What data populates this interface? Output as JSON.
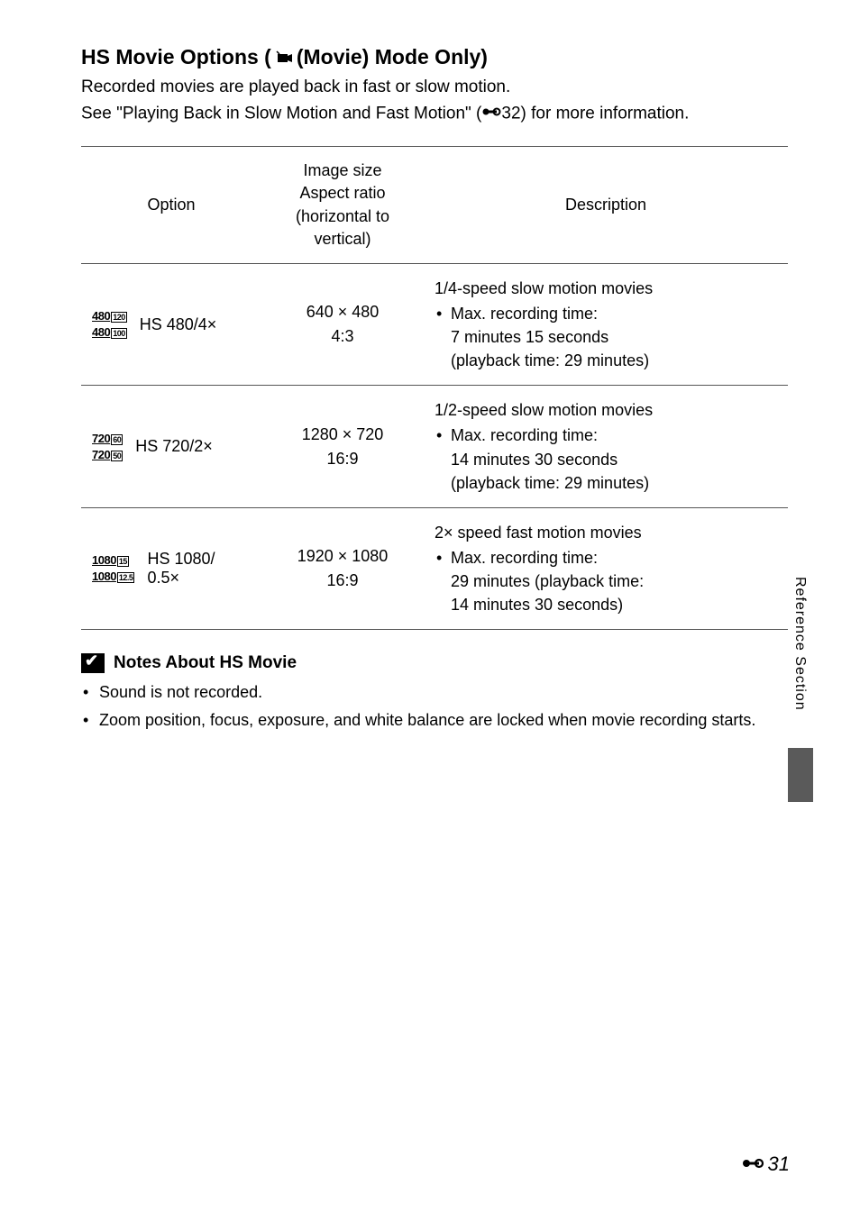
{
  "title": {
    "part1": "HS Movie Options (",
    "part2": " (Movie) Mode Only)"
  },
  "intro": {
    "line1": "Recorded movies are played back in fast or slow motion.",
    "line2a": "See \"Playing Back in Slow Motion and Fast Motion\" (",
    "line2b": "32) for more information."
  },
  "table": {
    "headers": {
      "option": "Option",
      "size": "Image size\nAspect ratio\n(horizontal to vertical)",
      "desc": "Description"
    },
    "rows": [
      {
        "icons": [
          {
            "res": "480",
            "fps": "120"
          },
          {
            "res": "480",
            "fps": "100"
          }
        ],
        "label": "HS 480/4×",
        "size": "640 × 480\n4:3",
        "desc_head": "1/4-speed slow motion movies",
        "desc_bullet": "Max. recording time:\n7 minutes 15 seconds\n(playback time: 29 minutes)"
      },
      {
        "icons": [
          {
            "res": "720",
            "fps": "60"
          },
          {
            "res": "720",
            "fps": "50"
          }
        ],
        "label": "HS 720/2×",
        "size": "1280 × 720\n16:9",
        "desc_head": "1/2-speed slow motion movies",
        "desc_bullet": "Max. recording time:\n14 minutes 30 seconds\n(playback time: 29 minutes)"
      },
      {
        "icons": [
          {
            "res": "1080",
            "fps": "15"
          },
          {
            "res": "1080",
            "fps": "12.5"
          }
        ],
        "label": "HS 1080/\n0.5×",
        "size": "1920 × 1080\n16:9",
        "desc_head": "2× speed fast motion movies",
        "desc_bullet": "Max. recording time:\n29 minutes (playback time:\n14 minutes 30 seconds)"
      }
    ]
  },
  "notes": {
    "heading": "Notes About HS Movie",
    "items": [
      "Sound is not recorded.",
      "Zoom position, focus, exposure, and white balance are locked when movie recording starts."
    ]
  },
  "side": {
    "label": "Reference Section"
  },
  "page": {
    "num": "31"
  },
  "colors": {
    "text": "#000000",
    "border": "#555555",
    "sidebar": "#5a5a5a"
  }
}
